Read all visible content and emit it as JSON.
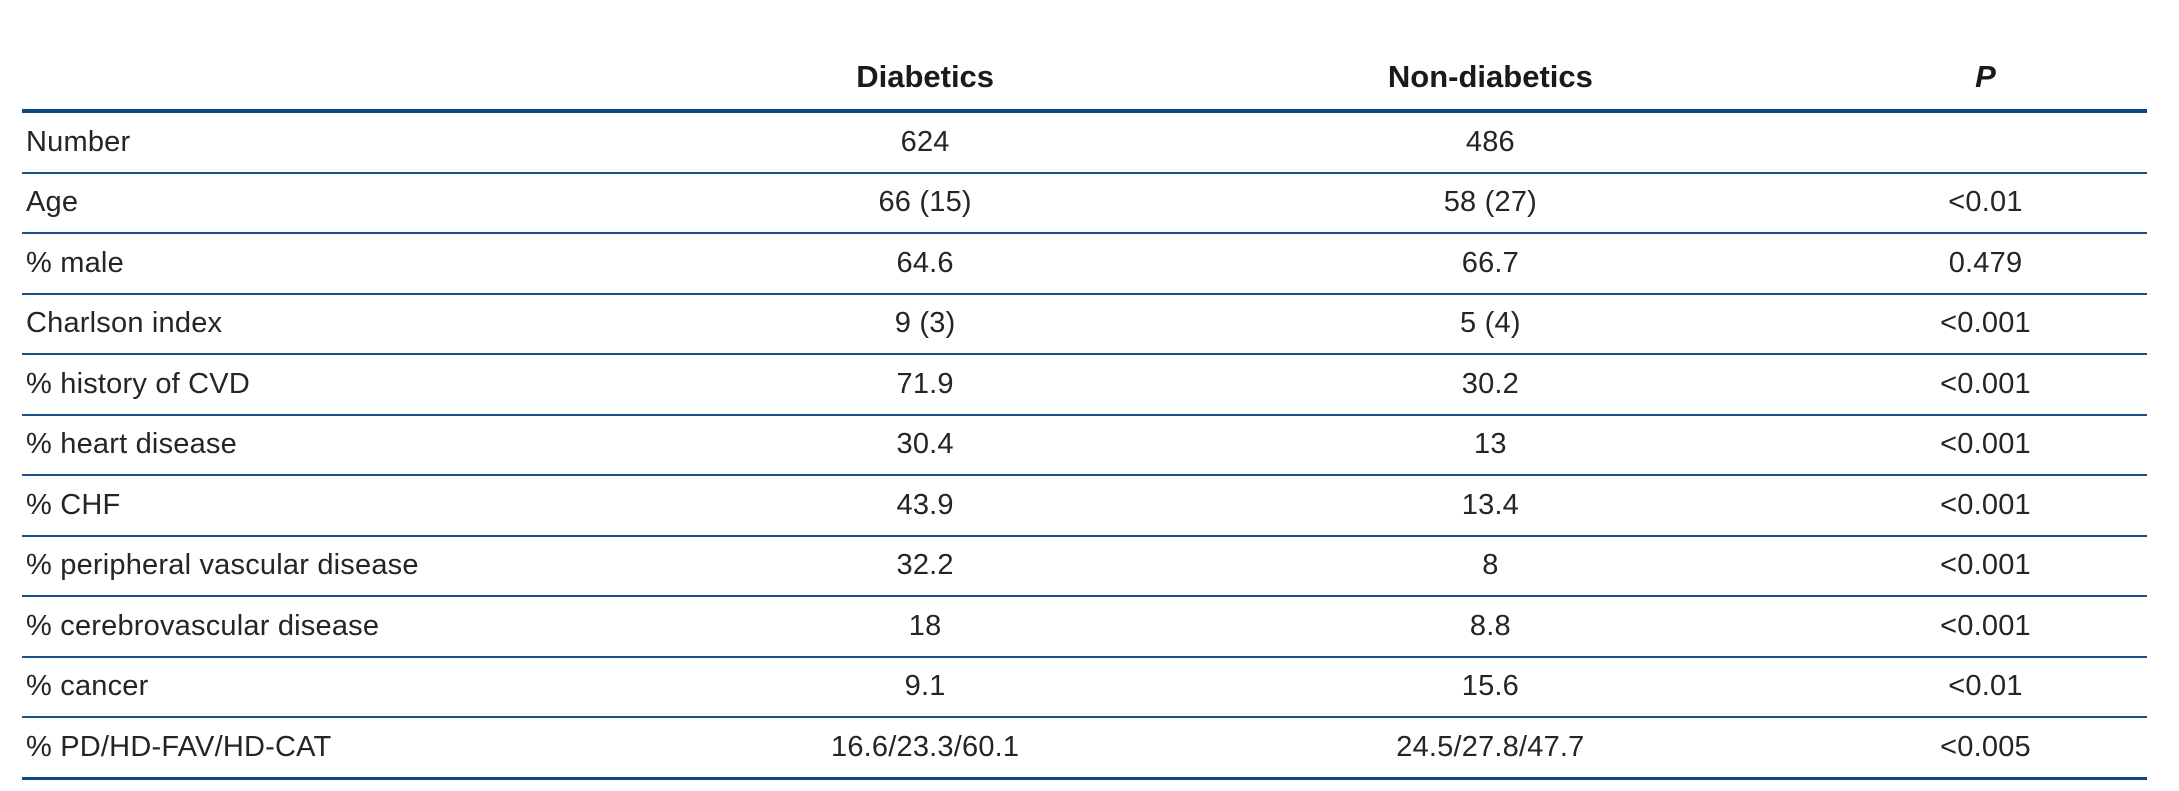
{
  "colors": {
    "rule_thick": "#0d4685",
    "rule_thin": "#1a4f87",
    "text": "#262424"
  },
  "table": {
    "headers": {
      "label": "",
      "diabetics": "Diabetics",
      "non_diabetics": "Non-diabetics",
      "p": "P"
    },
    "rows": [
      {
        "label": "Number",
        "diabetics": "624",
        "non_diabetics": "486",
        "p": ""
      },
      {
        "label": "Age",
        "diabetics": "66 (15)",
        "non_diabetics": "58 (27)",
        "p": "<0.01"
      },
      {
        "label": "% male",
        "diabetics": "64.6",
        "non_diabetics": "66.7",
        "p": "0.479"
      },
      {
        "label": "Charlson index",
        "diabetics": "9 (3)",
        "non_diabetics": "5 (4)",
        "p": "<0.001"
      },
      {
        "label": "% history of CVD",
        "diabetics": "71.9",
        "non_diabetics": "30.2",
        "p": "<0.001"
      },
      {
        "label": "% heart disease",
        "diabetics": "30.4",
        "non_diabetics": "13",
        "p": "<0.001"
      },
      {
        "label": "% CHF",
        "diabetics": "43.9",
        "non_diabetics": "13.4",
        "p": "<0.001"
      },
      {
        "label": "% peripheral vascular disease",
        "diabetics": "32.2",
        "non_diabetics": "8",
        "p": "<0.001"
      },
      {
        "label": "% cerebrovascular disease",
        "diabetics": "18",
        "non_diabetics": "8.8",
        "p": "<0.001"
      },
      {
        "label": "% cancer",
        "diabetics": "9.1",
        "non_diabetics": "15.6",
        "p": "<0.01"
      },
      {
        "label": "% PD/HD-FAV/HD-CAT",
        "diabetics": "16.6/23.3/60.1",
        "non_diabetics": "24.5/27.8/47.7",
        "p": "<0.005"
      }
    ]
  }
}
